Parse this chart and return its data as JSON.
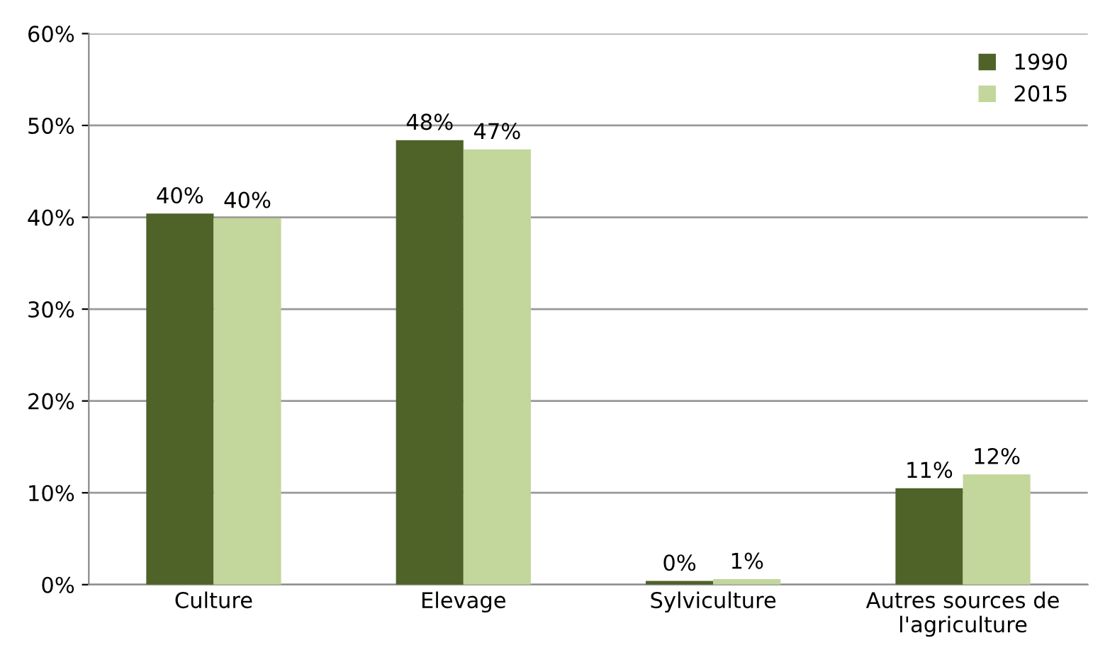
{
  "chart_data": {
    "type": "bar",
    "categories": [
      "Culture",
      "Elevage",
      "Sylviculture",
      "Autres sources de l'agriculture"
    ],
    "series": [
      {
        "name": "1990",
        "color": "#4f6228",
        "values": [
          40.4,
          48.4,
          0.4,
          10.5
        ],
        "value_labels": [
          "40%",
          "48%",
          "0%",
          "11%"
        ]
      },
      {
        "name": "2015",
        "color": "#c3d69b",
        "values": [
          39.9,
          47.4,
          0.6,
          12.0
        ],
        "value_labels": [
          "40%",
          "47%",
          "1%",
          "12%"
        ]
      }
    ],
    "ylim": [
      0,
      60
    ],
    "yticks": [
      {
        "value": 0,
        "label": "0%"
      },
      {
        "value": 10,
        "label": "10%"
      },
      {
        "value": 20,
        "label": "20%"
      },
      {
        "value": 30,
        "label": "30%"
      },
      {
        "value": 40,
        "label": "40%"
      },
      {
        "value": 50,
        "label": "50%"
      },
      {
        "value": 60,
        "label": "60%"
      }
    ],
    "grid": "y",
    "legend": "top right"
  }
}
